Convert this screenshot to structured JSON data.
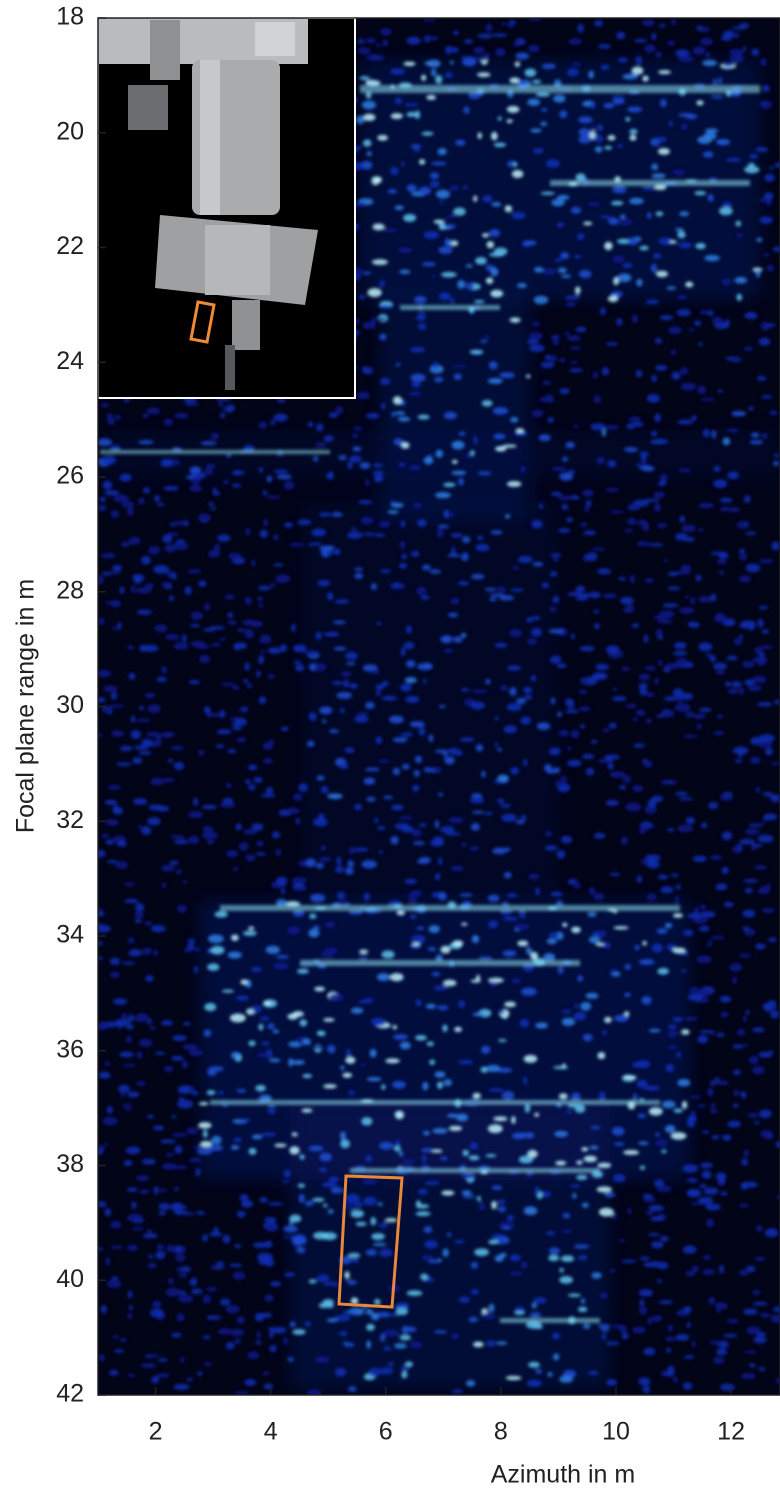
{
  "chart_data": {
    "type": "image",
    "xlabel": "Azimuth in m",
    "ylabel": "Focal plane range in m",
    "xlim": [
      1,
      12.85
    ],
    "xticks": [
      2,
      4,
      6,
      8,
      10,
      12
    ],
    "ylim": [
      42,
      18
    ],
    "yticks": [
      18,
      20,
      22,
      24,
      26,
      28,
      30,
      32,
      34,
      36,
      38,
      40,
      42
    ]
  }
}
